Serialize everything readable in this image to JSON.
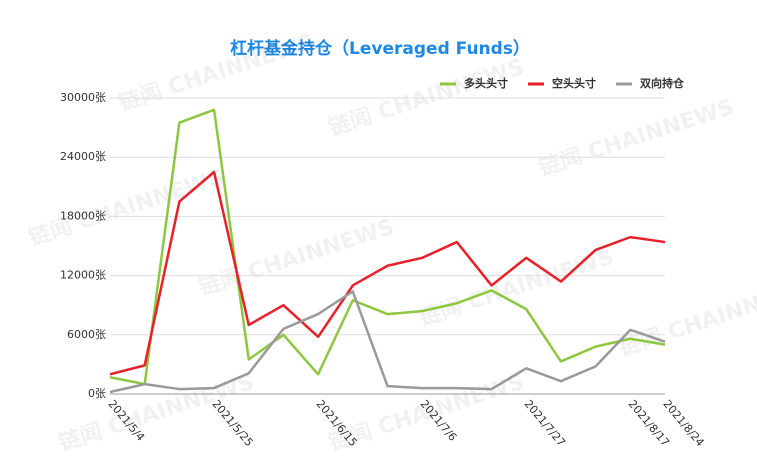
{
  "chart_data": {
    "type": "line",
    "title": "杠杆基金持仓（Leveraged Funds）",
    "watermark": "链闻 CHAINNEWS",
    "categories": [
      "2021/5/4",
      null,
      null,
      "2021/5/25",
      null,
      null,
      "2021/6/15",
      null,
      null,
      "2021/7/6",
      null,
      null,
      "2021/7/27",
      null,
      null,
      "2021/8/17",
      "2021/8/24"
    ],
    "series": [
      {
        "name": "多头头寸",
        "color": "#8dc63f",
        "values": [
          1700,
          1000,
          27500,
          28800,
          3500,
          6000,
          2000,
          9500,
          8100,
          8400,
          9200,
          10500,
          8600,
          3300,
          4800,
          5600,
          5000
        ]
      },
      {
        "name": "空头头寸",
        "color": "#e8202a",
        "values": [
          2000,
          2900,
          19500,
          22500,
          7000,
          9000,
          5800,
          11000,
          13000,
          13800,
          15400,
          11000,
          13800,
          11400,
          14600,
          15900,
          15400
        ]
      },
      {
        "name": "双向持仓",
        "color": "#999999",
        "values": [
          200,
          1000,
          500,
          600,
          2100,
          6600,
          8100,
          10400,
          800,
          600,
          600,
          500,
          2600,
          1300,
          2800,
          6500,
          5300
        ]
      }
    ],
    "ylim": [
      0,
      30000
    ],
    "yticks": [
      {
        "value": 0,
        "label": "0张"
      },
      {
        "value": 6000,
        "label": "6000张"
      },
      {
        "value": 12000,
        "label": "12000张"
      },
      {
        "value": 18000,
        "label": "18000张"
      },
      {
        "value": 24000,
        "label": "24000张"
      },
      {
        "value": 30000,
        "label": "30000张"
      }
    ],
    "grid": true,
    "legend": "top-right"
  }
}
